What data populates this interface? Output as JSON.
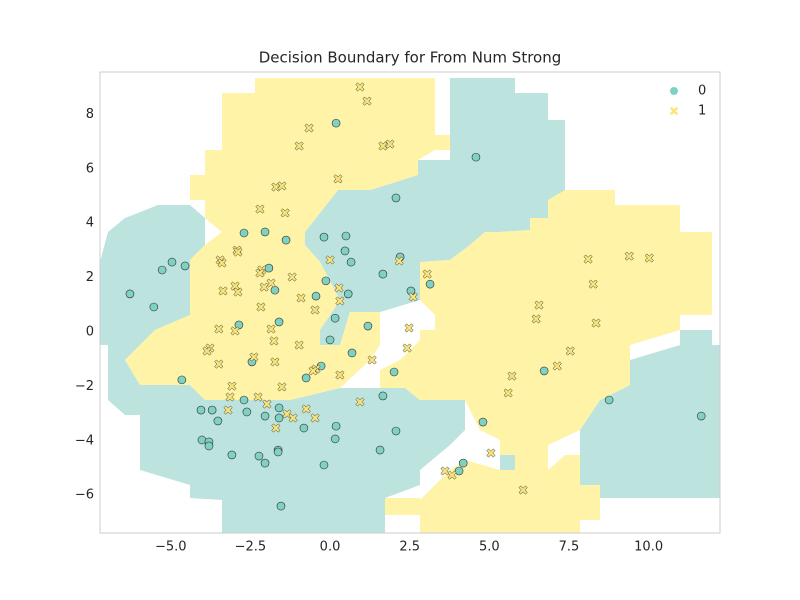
{
  "chart_data": {
    "type": "scatter",
    "title": "Decision Boundary for From Num Strong",
    "xlim": [
      -7.22,
      12.24
    ],
    "ylim": [
      -7.39,
      9.56
    ],
    "xticks": [
      {
        "value": -5,
        "label": "−5.0"
      },
      {
        "value": -2.5,
        "label": "−2.5"
      },
      {
        "value": 0,
        "label": "0.0"
      },
      {
        "value": 2.5,
        "label": "2.5"
      },
      {
        "value": 5,
        "label": "5.0"
      },
      {
        "value": 7.5,
        "label": "7.5"
      },
      {
        "value": 10,
        "label": "10.0"
      }
    ],
    "yticks": [
      {
        "value": -6,
        "label": "−6"
      },
      {
        "value": -4,
        "label": "−4"
      },
      {
        "value": -2,
        "label": "−2"
      },
      0,
      2,
      4,
      6,
      8
    ],
    "grid": false,
    "legend": "upper right",
    "series": [
      {
        "name": "0",
        "color": "#7fd1c1",
        "marker": "circle",
        "x": [
          0.19,
          4.58,
          2.07,
          -0.19,
          0.5,
          -2.7,
          -2.04,
          -1.38,
          0.47,
          2.2,
          0.66,
          1.66,
          -1.92,
          -4.96,
          -5.27,
          -4.55,
          -6.28,
          -5.53,
          -1.73,
          -0.44,
          -0.13,
          0.57,
          2.54,
          3.14,
          0.16,
          1.19,
          -1.6,
          -2.86,
          0.0,
          0.69,
          -2.45,
          -0.28,
          -0.75,
          2.01,
          -4.65,
          6.72,
          1.66,
          -2.7,
          -4.05,
          -3.7,
          -3.52,
          -2.61,
          -1.6,
          -2.04,
          -1.6,
          -0.82,
          0.19,
          0.16,
          2.07,
          4.8,
          8.76,
          11.65,
          -4.02,
          -3.8,
          -3.8,
          -3.08,
          -2.23,
          -2.04,
          -1.63,
          -1.63,
          1.57,
          -0.19,
          4.18,
          4.05,
          -1.54
        ],
        "y": [
          7.68,
          6.43,
          4.93,
          3.49,
          3.53,
          3.64,
          3.68,
          3.38,
          2.98,
          2.76,
          2.57,
          2.13,
          2.35,
          2.57,
          2.28,
          2.43,
          1.4,
          0.92,
          1.54,
          1.32,
          1.88,
          1.4,
          1.51,
          1.76,
          0.51,
          0.22,
          0.37,
          0.26,
          -0.29,
          -0.77,
          -1.1,
          -1.25,
          -1.69,
          -1.47,
          -1.76,
          -1.43,
          -2.35,
          -2.5,
          -2.87,
          -2.87,
          -3.27,
          -2.94,
          -2.79,
          -3.09,
          -3.16,
          -3.53,
          -3.46,
          -3.93,
          -3.64,
          -3.31,
          -2.5,
          -3.09,
          -3.97,
          -4.04,
          -4.19,
          -4.52,
          -4.56,
          -4.82,
          -4.34,
          -4.41,
          -4.34,
          -4.89,
          -4.82,
          -5.11,
          -6.4
        ]
      },
      {
        "name": "1",
        "color": "#fbe67a",
        "marker": "x",
        "x": [
          0.94,
          1.16,
          -0.66,
          -0.97,
          1.66,
          1.88,
          0.25,
          -1.7,
          -1.51,
          -1.41,
          -2.2,
          -2.92,
          -2.89,
          -3.45,
          -3.39,
          -2.14,
          -2.2,
          -1.85,
          -1.19,
          0.0,
          2.17,
          3.05,
          8.1,
          9.39,
          10.02,
          8.26,
          -2.07,
          -2.98,
          -3.36,
          -2.89,
          -0.91,
          0.28,
          0.31,
          2.61,
          -0.47,
          -2.17,
          6.56,
          6.47,
          8.35,
          -3.49,
          -2.98,
          -1.85,
          2.48,
          -1.76,
          -0.97,
          -3.77,
          -3.86,
          -2.39,
          -0.44,
          -0.53,
          1.32,
          2.42,
          -3.49,
          -1.73,
          7.54,
          7.13,
          0.31,
          5.71,
          -3.08,
          -1.51,
          5.59,
          -3.14,
          -2.26,
          -1.98,
          -3.2,
          -1.35,
          -0.75,
          -0.47,
          -1.16,
          -1.7,
          0.94,
          3.61,
          3.83,
          5.05,
          6.06
        ],
        "y": [
          9.01,
          8.49,
          7.5,
          6.84,
          6.84,
          6.91,
          5.63,
          5.33,
          5.37,
          4.38,
          4.52,
          3.01,
          2.94,
          2.65,
          2.54,
          2.28,
          2.17,
          1.8,
          2.02,
          2.65,
          2.61,
          2.13,
          2.68,
          2.79,
          2.72,
          1.76,
          1.65,
          1.69,
          1.51,
          1.47,
          1.25,
          1.62,
          1.14,
          1.29,
          0.81,
          0.92,
          0.99,
          0.48,
          0.33,
          0.11,
          0.04,
          0.11,
          0.15,
          -0.33,
          -0.48,
          -0.59,
          -0.7,
          -0.92,
          -1.36,
          -1.43,
          -1.03,
          -0.59,
          -1.18,
          -1.1,
          -0.7,
          -1.25,
          -1.58,
          -1.62,
          -1.99,
          -2.02,
          -2.24,
          -2.39,
          -2.39,
          -2.65,
          -2.87,
          -3.01,
          -2.83,
          -3.16,
          -3.16,
          -3.53,
          -2.57,
          -5.11,
          -5.26,
          -4.45,
          -5.81
        ]
      }
    ]
  }
}
